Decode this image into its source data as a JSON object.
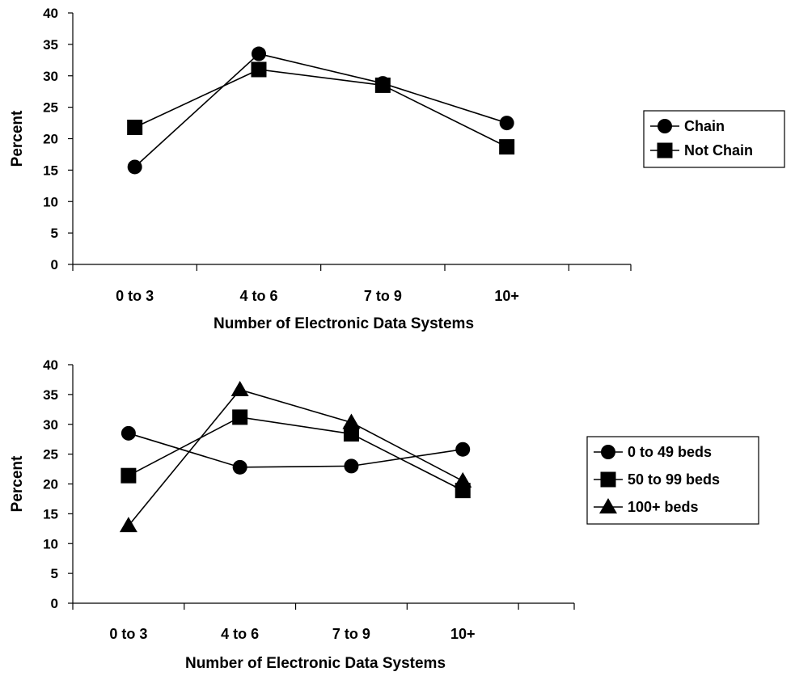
{
  "chart_data": [
    {
      "type": "line",
      "title": "",
      "xlabel": "Number of Electronic Data Systems",
      "ylabel": "Percent",
      "ylim": [
        0,
        40
      ],
      "yticks": [
        "0",
        "5",
        "10",
        "15",
        "20",
        "25",
        "30",
        "35",
        "40"
      ],
      "categories": [
        "0 to 3",
        "4 to 6",
        "7 to 9",
        "10+"
      ],
      "grid": false,
      "legend_position": "right",
      "series": [
        {
          "name": "Chain",
          "marker": "circle",
          "values": [
            15.5,
            33.5,
            28.8,
            22.5
          ]
        },
        {
          "name": "Not Chain",
          "marker": "square",
          "values": [
            21.8,
            31.0,
            28.5,
            18.7
          ]
        }
      ]
    },
    {
      "type": "line",
      "title": "",
      "xlabel": "Number of Electronic Data Systems",
      "ylabel": "Percent",
      "ylim": [
        0,
        40
      ],
      "yticks": [
        "0",
        "5",
        "10",
        "15",
        "20",
        "25",
        "30",
        "35",
        "40"
      ],
      "categories": [
        "0 to 3",
        "4 to 6",
        "7 to 9",
        "10+"
      ],
      "grid": false,
      "legend_position": "right",
      "series": [
        {
          "name": "0 to 49 beds",
          "marker": "circle",
          "values": [
            28.5,
            22.8,
            23.0,
            25.8
          ]
        },
        {
          "name": "50 to 99 beds",
          "marker": "square",
          "values": [
            21.4,
            31.2,
            28.4,
            18.9
          ]
        },
        {
          "name": "100+ beds",
          "marker": "triangle",
          "values": [
            13.0,
            35.8,
            30.3,
            20.5
          ]
        }
      ]
    }
  ]
}
